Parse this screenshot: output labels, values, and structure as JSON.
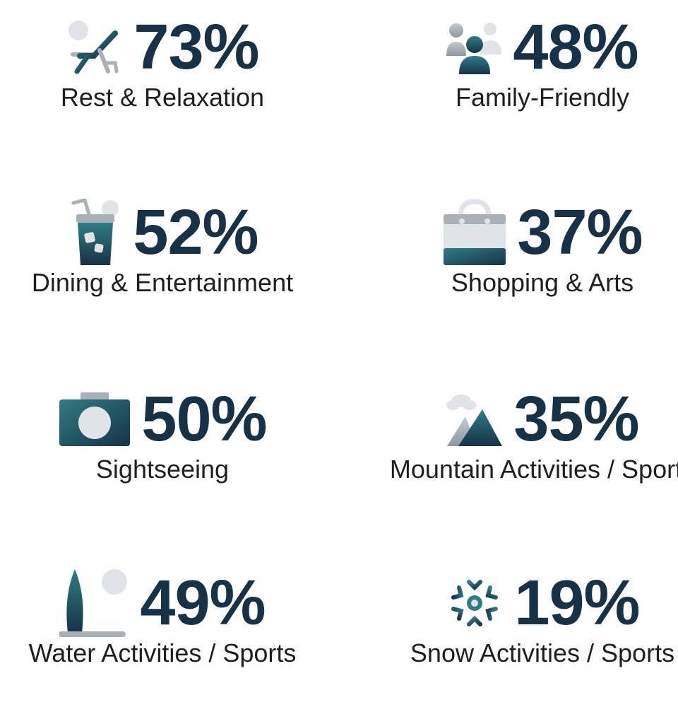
{
  "colors": {
    "number": "#173247",
    "icon_dark": "#1b3a4f",
    "icon_teal": "#2f7d86",
    "icon_light": "#e0e3e7",
    "icon_grey": "#a9b0b7"
  },
  "stats": [
    {
      "value": "73%",
      "label": "Rest & Relaxation",
      "icon": "beach-chair-icon"
    },
    {
      "value": "48%",
      "label": "Family-Friendly",
      "icon": "family-icon"
    },
    {
      "value": "52%",
      "label": "Dining & Entertainment",
      "icon": "drink-icon"
    },
    {
      "value": "37%",
      "label": "Shopping & Arts",
      "icon": "shopping-bag-icon"
    },
    {
      "value": "50%",
      "label": "Sightseeing",
      "icon": "camera-icon"
    },
    {
      "value": "35%",
      "label": "Mountain Activities / Sports",
      "icon": "mountain-icon"
    },
    {
      "value": "49%",
      "label": "Water Activities / Sports",
      "icon": "surfboard-icon"
    },
    {
      "value": "19%",
      "label": "Snow Activities / Sports",
      "icon": "snowflake-icon"
    }
  ]
}
